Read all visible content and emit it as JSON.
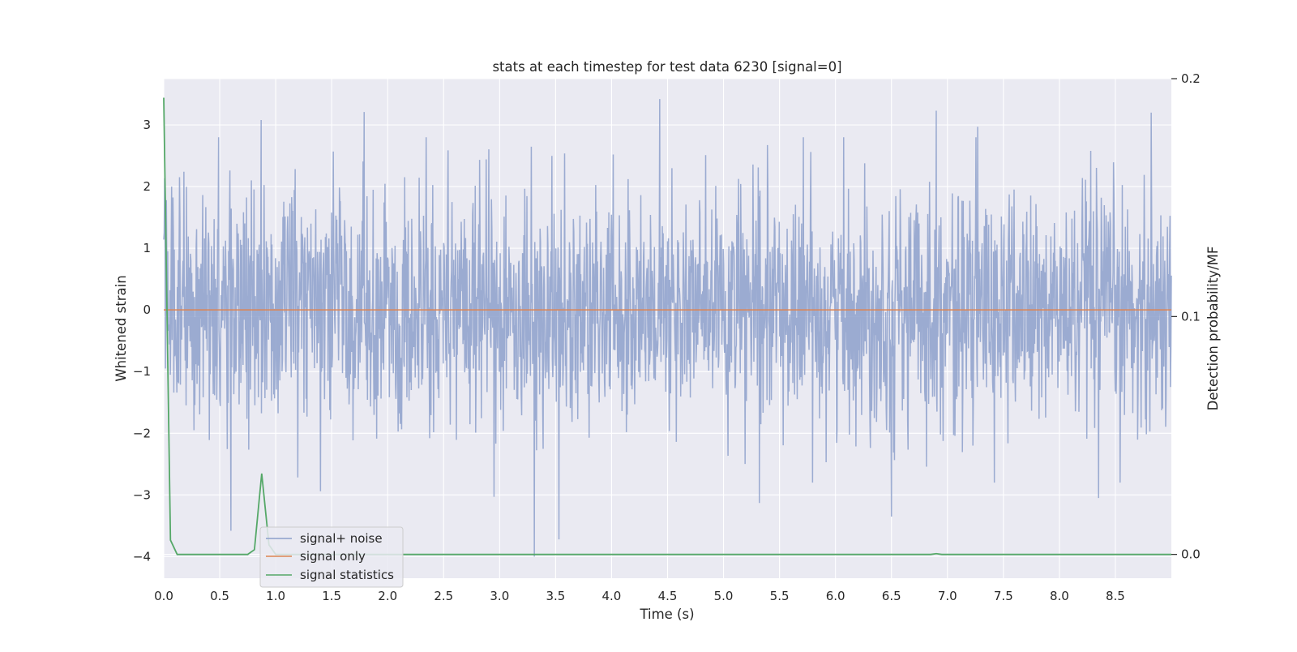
{
  "chart_data": {
    "type": "line",
    "title": "stats at each timestep for test data 6230 [signal=0]",
    "xlabel": "Time (s)",
    "ylabel": "Whitened strain",
    "y2label": "Detection probability/MF",
    "xlim": [
      0.0,
      9.0
    ],
    "ylim": [
      -4.35,
      3.75
    ],
    "y2lim": [
      -0.01,
      0.2
    ],
    "xticks": [
      0.0,
      0.5,
      1.0,
      1.5,
      2.0,
      2.5,
      3.0,
      3.5,
      4.0,
      4.5,
      5.0,
      5.5,
      6.0,
      6.5,
      7.0,
      7.5,
      8.0,
      8.5
    ],
    "xtick_labels": [
      "0.0",
      "0.5",
      "1.0",
      "1.5",
      "2.0",
      "2.5",
      "3.0",
      "3.5",
      "4.0",
      "4.5",
      "5.0",
      "5.5",
      "6.0",
      "6.5",
      "7.0",
      "7.5",
      "8.0",
      "8.5"
    ],
    "yticks": [
      3,
      2,
      1,
      0,
      -1,
      -2,
      -3,
      -4
    ],
    "ytick_labels": [
      "3",
      "2",
      "1",
      "0",
      "−1",
      "−2",
      "−3",
      "−4"
    ],
    "y2ticks": [
      0.2,
      0.1,
      0.0
    ],
    "y2tick_labels": [
      "0.2",
      "0.1",
      "0.0"
    ],
    "grid": true,
    "legend_position": "bottom-left",
    "series": [
      {
        "name": "signal+ noise",
        "axis": "left",
        "color": "#8da0cb",
        "description_type": "noise",
        "x_range": [
          0.0,
          9.0
        ],
        "typical_amplitude": 1.75,
        "peaks": [
          {
            "x": 0.49,
            "y": 2.8
          },
          {
            "x": 0.87,
            "y": 3.08
          },
          {
            "x": 1.79,
            "y": 3.21
          },
          {
            "x": 4.43,
            "y": 3.42
          },
          {
            "x": 6.9,
            "y": 3.23
          },
          {
            "x": 7.27,
            "y": 2.97
          },
          {
            "x": 8.82,
            "y": 3.2
          },
          {
            "x": 3.31,
            "y": -4.0
          },
          {
            "x": 3.53,
            "y": -3.72
          },
          {
            "x": 0.6,
            "y": -3.58
          },
          {
            "x": 6.5,
            "y": -3.35
          },
          {
            "x": 8.35,
            "y": -3.05
          },
          {
            "x": 5.32,
            "y": -3.13
          },
          {
            "x": 2.95,
            "y": -3.03
          },
          {
            "x": 1.4,
            "y": -2.94
          }
        ]
      },
      {
        "name": "signal only",
        "axis": "left",
        "color": "#dd8452",
        "x": [
          0.0,
          9.0
        ],
        "y": [
          0.0,
          0.0
        ]
      },
      {
        "name": "signal statistics",
        "axis": "right",
        "color": "#55a868",
        "x": [
          0.0,
          0.06,
          0.12,
          0.25,
          0.5,
          0.75,
          0.81,
          0.875,
          0.94,
          1.0,
          1.25,
          6.85,
          6.9,
          6.95,
          9.0
        ],
        "y": [
          0.192,
          0.006,
          0.0,
          0.0,
          0.0,
          0.0,
          0.002,
          0.034,
          0.004,
          0.0,
          0.0,
          0.0,
          0.0003,
          0.0,
          0.0
        ]
      }
    ]
  }
}
